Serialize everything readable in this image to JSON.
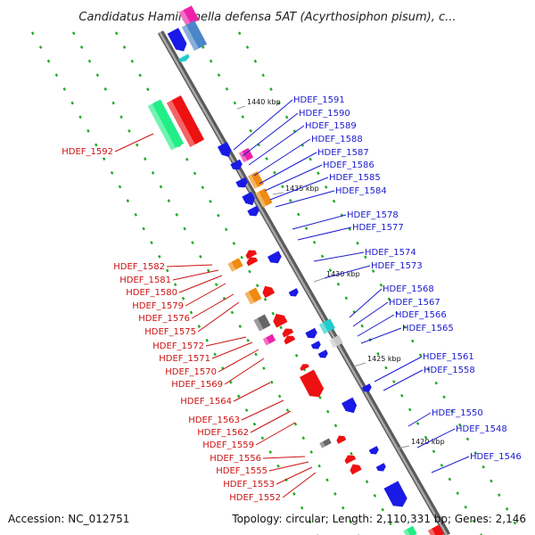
{
  "title": "Candidatus Hamiltonella defensa 5AT (Acyrthosiphon pisum), c...",
  "accession": "Accession: NC_012751",
  "topology": "Topology: circular; Length: 2,110,331 bp; Genes: 2,146",
  "colors": {
    "backbone": "#888888",
    "forward_label": "#1a1acc",
    "reverse_label": "#cc1111",
    "blue": "#1a1ae6",
    "red": "#ee1111",
    "orange": "#f08a10",
    "green": "#22ee88",
    "magenta": "#ee22aa",
    "cyan": "#22cccc",
    "gray": "#666666",
    "light_gray": "#c8c8c8",
    "steel": "#4a86c8",
    "dots": "#22aa22"
  },
  "scale_ticks": [
    "1440 kbp",
    "1435 kbp",
    "1430 kbp",
    "1425 kbp",
    "1420 kbp"
  ],
  "forward_genes": [
    "HDEF_1591",
    "HDEF_1590",
    "HDEF_1589",
    "HDEF_1588",
    "HDEF_1587",
    "HDEF_1586",
    "HDEF_1585",
    "HDEF_1584",
    "HDEF_1578",
    "HDEF_1577",
    "HDEF_1574",
    "HDEF_1573",
    "HDEF_1568",
    "HDEF_1567",
    "HDEF_1566",
    "HDEF_1565",
    "HDEF_1561",
    "HDEF_1558",
    "HDEF_1550",
    "HDEF_1548",
    "HDEF_1546"
  ],
  "reverse_genes": [
    "HDEF_1592",
    "HDEF_1582",
    "HDEF_1581",
    "HDEF_1580",
    "HDEF_1579",
    "HDEF_1576",
    "HDEF_1575",
    "HDEF_1572",
    "HDEF_1571",
    "HDEF_1570",
    "HDEF_1569",
    "HDEF_1564",
    "HDEF_1563",
    "HDEF_1562",
    "HDEF_1559",
    "HDEF_1556",
    "HDEF_1555",
    "HDEF_1553",
    "HDEF_1552"
  ]
}
